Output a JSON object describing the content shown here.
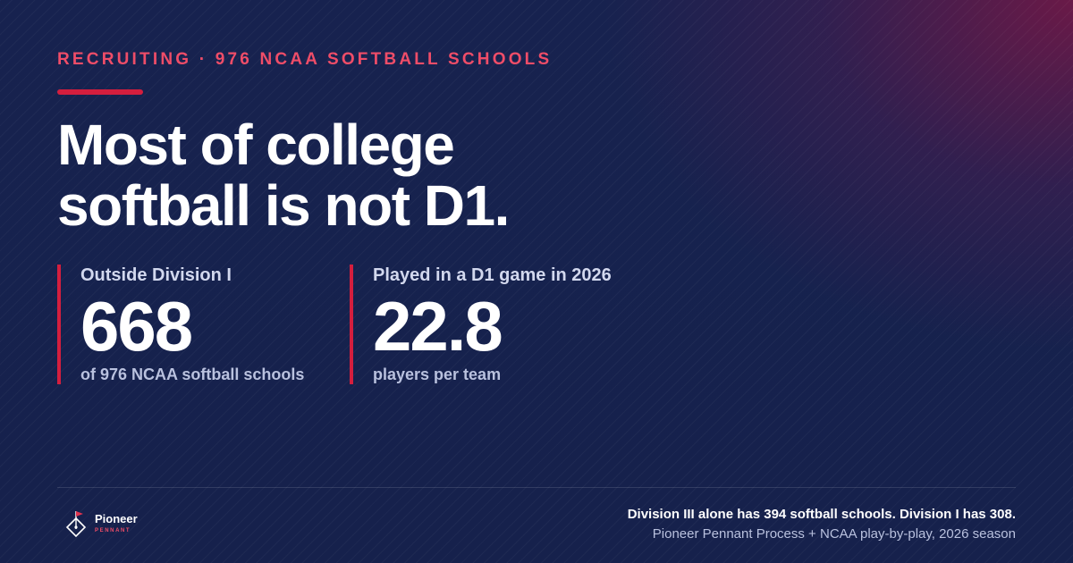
{
  "eyebrow": "RECRUITING · 976 NCAA SOFTBALL SCHOOLS",
  "headline": {
    "line1": "Most of college",
    "line2": "softball is not D1."
  },
  "stats": [
    {
      "label": "Outside Division I",
      "value": "668",
      "sub": "of 976 NCAA softball schools"
    },
    {
      "label": "Played in a D1 game in 2026",
      "value": "22.8",
      "sub": "players per team"
    }
  ],
  "footer": {
    "note": "Division III alone has 394 softball schools. Division I has 308.",
    "source": "Pioneer Pennant Process + NCAA play-by-play, 2026 season"
  },
  "brand": {
    "name": "Pioneer",
    "tagline": "PENNANT",
    "icon": "diamond-pennant-icon"
  },
  "colors": {
    "accent": "#d41e3e",
    "eyebrow": "#ef4d68",
    "background": "#16214f"
  }
}
